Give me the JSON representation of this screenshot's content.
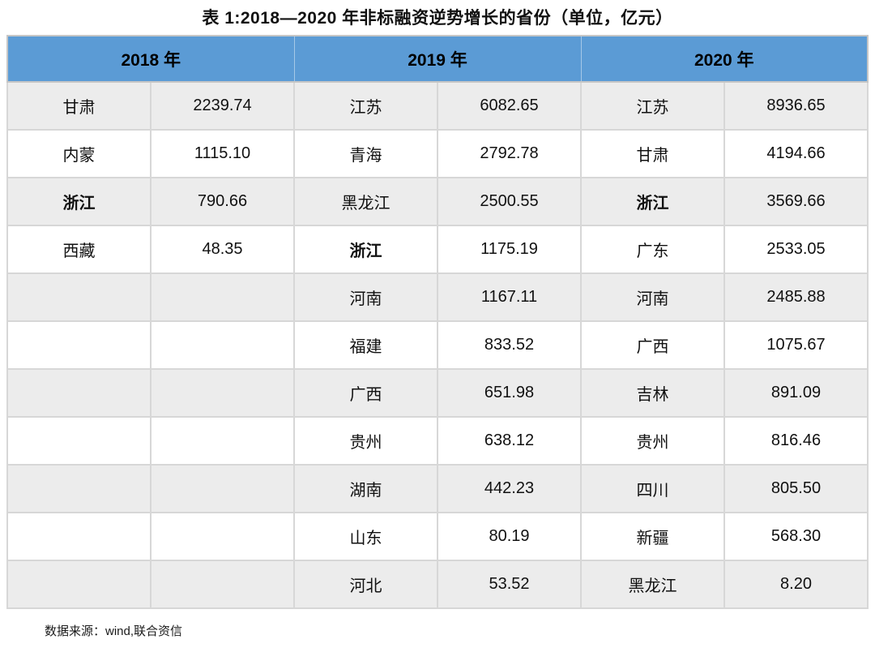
{
  "title": "表 1:2018—2020 年非标融资逆势增长的省份（单位，亿元）",
  "source_note": "数据来源：wind,联合资信",
  "colors": {
    "header_bg": "#5b9bd5",
    "header_text": "#000000",
    "row_alt_bg": "#ececec",
    "row_bg": "#ffffff",
    "border": "#d7d7d7",
    "text": "#111111"
  },
  "table": {
    "headers": [
      "2018 年",
      "2019 年",
      "2020 年"
    ],
    "row_count": 11,
    "groups": [
      {
        "year": "2018 年",
        "rows": [
          {
            "province": "甘肃",
            "value": "2239.74"
          },
          {
            "province": "内蒙",
            "value": "1115.10"
          },
          {
            "province": "浙江",
            "value": "790.66",
            "bold": true
          },
          {
            "province": "西藏",
            "value": "48.35"
          },
          {
            "province": "",
            "value": ""
          },
          {
            "province": "",
            "value": ""
          },
          {
            "province": "",
            "value": ""
          },
          {
            "province": "",
            "value": ""
          },
          {
            "province": "",
            "value": ""
          },
          {
            "province": "",
            "value": ""
          },
          {
            "province": "",
            "value": ""
          }
        ]
      },
      {
        "year": "2019 年",
        "rows": [
          {
            "province": "江苏",
            "value": "6082.65"
          },
          {
            "province": "青海",
            "value": "2792.78"
          },
          {
            "province": "黑龙江",
            "value": "2500.55"
          },
          {
            "province": "浙江",
            "value": "1175.19",
            "bold": true
          },
          {
            "province": "河南",
            "value": "1167.11"
          },
          {
            "province": "福建",
            "value": "833.52"
          },
          {
            "province": "广西",
            "value": "651.98"
          },
          {
            "province": "贵州",
            "value": "638.12"
          },
          {
            "province": "湖南",
            "value": "442.23"
          },
          {
            "province": "山东",
            "value": "80.19"
          },
          {
            "province": "河北",
            "value": "53.52"
          }
        ]
      },
      {
        "year": "2020 年",
        "rows": [
          {
            "province": "江苏",
            "value": "8936.65"
          },
          {
            "province": "甘肃",
            "value": "4194.66"
          },
          {
            "province": "浙江",
            "value": "3569.66",
            "bold": true
          },
          {
            "province": "广东",
            "value": "2533.05"
          },
          {
            "province": "河南",
            "value": "2485.88"
          },
          {
            "province": "广西",
            "value": "1075.67"
          },
          {
            "province": "吉林",
            "value": "891.09"
          },
          {
            "province": "贵州",
            "value": "816.46"
          },
          {
            "province": "四川",
            "value": "805.50"
          },
          {
            "province": "新疆",
            "value": "568.30"
          },
          {
            "province": "黑龙江",
            "value": "8.20"
          }
        ]
      }
    ]
  },
  "chart_data": {
    "type": "table",
    "title": "表 1:2018—2020 年非标融资逆势增长的省份（单位，亿元）",
    "unit": "亿元",
    "header_groups": [
      "2018 年",
      "2019 年",
      "2020 年"
    ],
    "rows": [
      [
        "甘肃",
        2239.74,
        "江苏",
        6082.65,
        "江苏",
        8936.65
      ],
      [
        "内蒙",
        1115.1,
        "青海",
        2792.78,
        "甘肃",
        4194.66
      ],
      [
        "浙江",
        790.66,
        "黑龙江",
        2500.55,
        "浙江",
        3569.66
      ],
      [
        "西藏",
        48.35,
        "浙江",
        1175.19,
        "广东",
        2533.05
      ],
      [
        "",
        null,
        "河南",
        1167.11,
        "河南",
        2485.88
      ],
      [
        "",
        null,
        "福建",
        833.52,
        "广西",
        1075.67
      ],
      [
        "",
        null,
        "广西",
        651.98,
        "吉林",
        891.09
      ],
      [
        "",
        null,
        "贵州",
        638.12,
        "贵州",
        816.46
      ],
      [
        "",
        null,
        "湖南",
        442.23,
        "四川",
        805.5
      ],
      [
        "",
        null,
        "山东",
        80.19,
        "新疆",
        568.3
      ],
      [
        "",
        null,
        "河北",
        53.52,
        "黑龙江",
        8.2
      ]
    ],
    "bold_provinces": [
      "浙江"
    ],
    "source": "数据来源：wind,联合资信"
  }
}
